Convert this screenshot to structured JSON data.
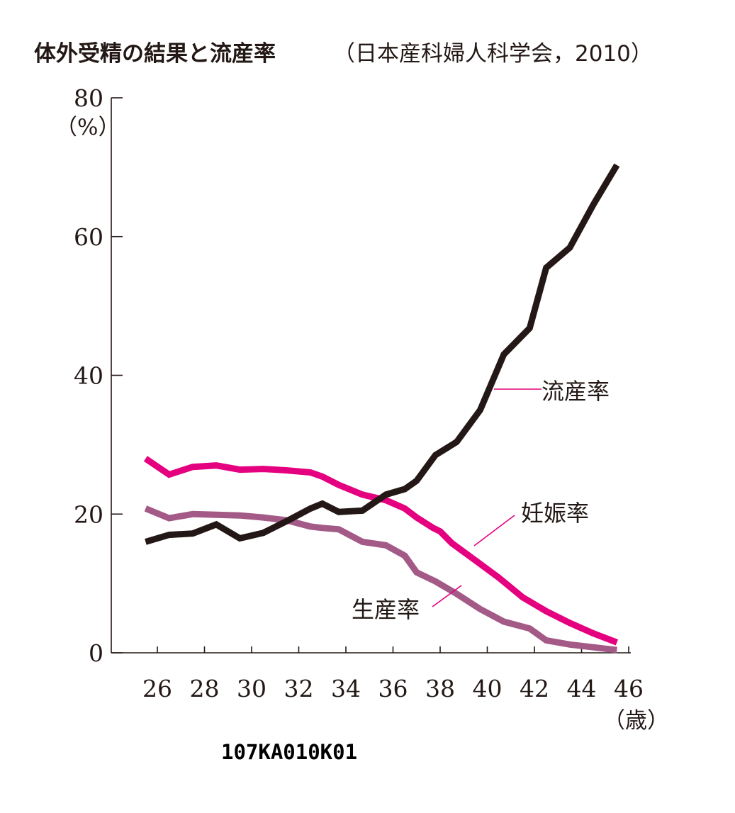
{
  "chart_data": {
    "type": "line",
    "title": "体外受精の結果と流産率",
    "subtitle": "（日本産科婦人科学会，2010）",
    "ylabel": "（%）",
    "xlabel": "（歳）",
    "ylim": [
      0,
      80
    ],
    "y_ticks": [
      0,
      20,
      40,
      60,
      80
    ],
    "x_ticks": [
      26,
      28,
      30,
      32,
      34,
      36,
      38,
      40,
      42,
      44,
      46
    ],
    "legend": "inline-labels",
    "grid": false,
    "series": [
      {
        "name": "流産率",
        "color": "#231815",
        "x": [
          25.5,
          26.5,
          27.5,
          28.5,
          29.5,
          30.5,
          31.5,
          32.5,
          33.0,
          33.7,
          34.7,
          35.7,
          36.5,
          37.0,
          37.8,
          38.7,
          39.7,
          40.7,
          41.8,
          42.5,
          43.5,
          44.5,
          45.5
        ],
        "values": [
          16.0,
          17.0,
          17.2,
          18.5,
          16.5,
          17.3,
          19.0,
          20.8,
          21.5,
          20.3,
          20.5,
          22.8,
          23.6,
          24.8,
          28.5,
          30.4,
          35.0,
          43.0,
          46.8,
          55.5,
          58.4,
          64.6,
          70.3
        ]
      },
      {
        "name": "妊娠率",
        "color": "#E4007F",
        "x": [
          25.5,
          26.5,
          27.5,
          28.5,
          29.5,
          30.5,
          31.5,
          32.5,
          33.0,
          33.7,
          34.7,
          35.7,
          36.5,
          37.0,
          37.7,
          38.0,
          38.5,
          39.5,
          40.5,
          41.5,
          42.5,
          43.5,
          44.5,
          45.5
        ],
        "values": [
          28.0,
          25.7,
          26.8,
          27.0,
          26.4,
          26.5,
          26.3,
          26.0,
          25.4,
          24.2,
          22.8,
          22.0,
          20.8,
          19.5,
          18.0,
          17.5,
          15.8,
          13.3,
          10.8,
          8.0,
          6.0,
          4.3,
          2.8,
          1.5
        ]
      },
      {
        "name": "生産率",
        "color": "#A45A87",
        "x": [
          25.5,
          26.5,
          27.5,
          28.5,
          29.5,
          30.5,
          31.5,
          32.5,
          33.0,
          33.7,
          34.7,
          35.7,
          36.5,
          37.0,
          37.8,
          38.7,
          39.7,
          40.7,
          41.8,
          42.5,
          43.5,
          44.5,
          45.5
        ],
        "values": [
          20.8,
          19.4,
          20.0,
          19.9,
          19.8,
          19.5,
          19.1,
          18.2,
          18.0,
          17.8,
          16.0,
          15.5,
          14.0,
          11.6,
          10.3,
          8.5,
          6.3,
          4.5,
          3.5,
          1.8,
          1.2,
          0.8,
          0.4
        ]
      }
    ]
  },
  "figure_code": "107KA010K01"
}
